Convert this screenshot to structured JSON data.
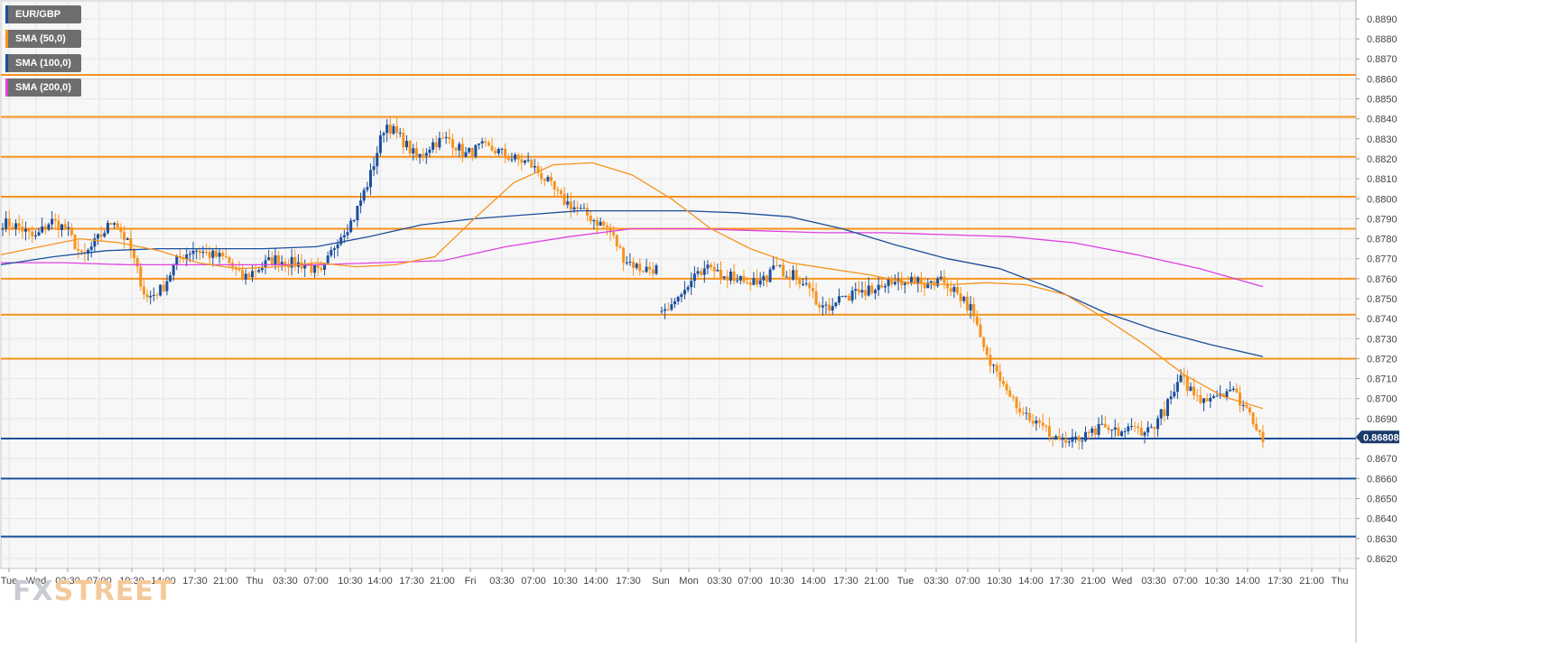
{
  "instrument": "EUR/GBP",
  "legend": [
    {
      "label": "EUR/GBP",
      "color": "#1b4f9c"
    },
    {
      "label": "SMA (50,0)",
      "color": "#f7931e"
    },
    {
      "label": "SMA (100,0)",
      "color": "#1b4f9c"
    },
    {
      "label": "SMA (200,0)",
      "color": "#e040e0"
    }
  ],
  "watermark": {
    "a": "FX",
    "b": "STREET"
  },
  "colors": {
    "up": "#1b4f9c",
    "down": "#f7931e",
    "resistance": "#f7931e",
    "support": "#1b4f9c",
    "sma50": "#f7931e",
    "sma100": "#1b4f9c",
    "sma200": "#e040e0",
    "grid": "#e5e5e5",
    "price_tag": "#1b3a6b"
  },
  "chart_data": {
    "type": "candlestick",
    "ylim": [
      0.8615,
      0.8899
    ],
    "y_ticks": [
      "0.8620",
      "0.8630",
      "0.8640",
      "0.8650",
      "0.8660",
      "0.8670",
      "0.8680",
      "0.8690",
      "0.8700",
      "0.8710",
      "0.8720",
      "0.8730",
      "0.8740",
      "0.8750",
      "0.8760",
      "0.8770",
      "0.8780",
      "0.8790",
      "0.8800",
      "0.8810",
      "0.8820",
      "0.8830",
      "0.8840",
      "0.8850",
      "0.8860",
      "0.8870",
      "0.8880",
      "0.8890"
    ],
    "x_ticks": [
      "Tue",
      "Wed",
      "03:30",
      "07:00",
      "10:30",
      "14:00",
      "17:30",
      "21:00",
      "Thu",
      "03:30",
      "07:00",
      "10:30",
      "14:00",
      "17:30",
      "21:00",
      "Fri",
      "03:30",
      "07:00",
      "10:30",
      "14:00",
      "17:30",
      "Sun",
      "Mon",
      "03:30",
      "07:00",
      "10:30",
      "14:00",
      "17:30",
      "21:00",
      "Tue",
      "03:30",
      "07:00",
      "10:30",
      "14:00",
      "17:30",
      "21:00",
      "Wed",
      "03:30",
      "07:00",
      "10:30",
      "14:00",
      "17:30",
      "21:00",
      "Thu"
    ],
    "last_price": "0.86808",
    "last_price_value": 0.86808,
    "resistance_levels": [
      0.8862,
      0.8841,
      0.8821,
      0.8801,
      0.8785,
      0.876,
      0.8742,
      0.872
    ],
    "support_levels": [
      0.868,
      0.866,
      0.8631
    ],
    "candle_anchors": [
      [
        0.8788,
        0.8786,
        0.878,
        0.8789,
        0.8785,
        0.877,
        0.878,
        0.879,
        0.8775,
        0.875,
        0.8755,
        0.877,
        0.8775,
        0.8772,
        0.877,
        0.876,
        0.8765,
        0.877,
        0.8768,
        0.8767,
        0.8762,
        0.878,
        0.879,
        0.881,
        0.8838,
        0.883,
        0.882,
        0.8828,
        0.883,
        0.8822,
        0.8826,
        0.8824,
        0.882,
        0.8818,
        0.881,
        0.88,
        0.8795,
        0.879,
        0.8785,
        0.877,
        0.8765,
        0.8765
      ],
      [
        0.8745,
        0.875,
        0.876,
        0.8765,
        0.8762,
        0.876,
        0.8758,
        0.8765,
        0.8762,
        0.8755,
        0.8745,
        0.875,
        0.8752,
        0.8755,
        0.8757,
        0.876,
        0.8757,
        0.876,
        0.8755,
        0.8745,
        0.872,
        0.871,
        0.8695,
        0.8688,
        0.8682,
        0.8678,
        0.868,
        0.8685,
        0.8683,
        0.8685,
        0.8684,
        0.8695,
        0.871,
        0.87,
        0.8702,
        0.8705,
        0.8695,
        0.8681
      ]
    ],
    "sma50": [
      0.8772,
      0.8776,
      0.878,
      0.8778,
      0.8774,
      0.8768,
      0.8765,
      0.8766,
      0.8768,
      0.8766,
      0.8767,
      0.8771,
      0.879,
      0.8808,
      0.8817,
      0.8818,
      0.8812,
      0.88,
      0.8785,
      0.8775,
      0.8768,
      0.8765,
      0.8762,
      0.8758,
      0.8757,
      0.8758,
      0.8757,
      0.8752,
      0.874,
      0.8727,
      0.8712,
      0.8701,
      0.8695
    ],
    "sma100": [
      0.8767,
      0.8771,
      0.8774,
      0.8775,
      0.8775,
      0.8775,
      0.8776,
      0.8781,
      0.8787,
      0.879,
      0.8792,
      0.8794,
      0.8794,
      0.8794,
      0.8793,
      0.8791,
      0.8785,
      0.8777,
      0.877,
      0.8765,
      0.8755,
      0.8743,
      0.8734,
      0.8727,
      0.8721
    ],
    "sma200": [
      0.8768,
      0.8768,
      0.8767,
      0.8767,
      0.8767,
      0.8767,
      0.8768,
      0.8769,
      0.8776,
      0.8781,
      0.8785,
      0.8785,
      0.8784,
      0.8783,
      0.8783,
      0.8782,
      0.8781,
      0.8778,
      0.8772,
      0.8765,
      0.8756
    ]
  }
}
